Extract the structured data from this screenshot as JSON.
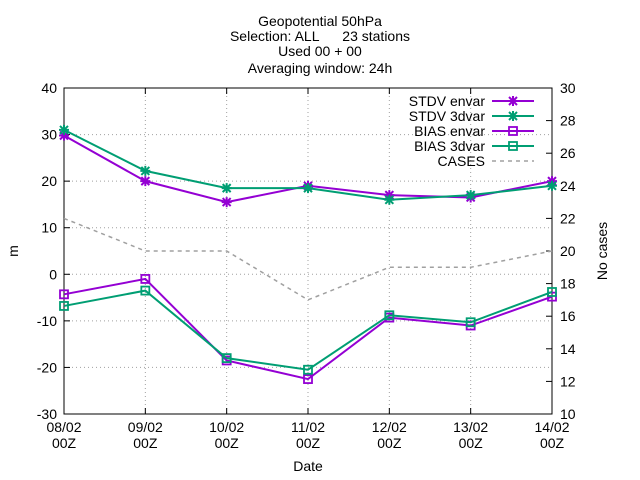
{
  "chart_data": {
    "type": "line",
    "title_lines": [
      "Geopotential 50hPa",
      "Selection: ALL      23 stations",
      "Used 00 + 00",
      "Averaging window: 24h"
    ],
    "xlabel": "Date",
    "ylabel": "m",
    "y2label": "No cases",
    "categories": [
      [
        "08/02",
        "00Z"
      ],
      [
        "09/02",
        "00Z"
      ],
      [
        "10/02",
        "00Z"
      ],
      [
        "11/02",
        "00Z"
      ],
      [
        "12/02",
        "00Z"
      ],
      [
        "13/02",
        "00Z"
      ],
      [
        "14/02",
        "00Z"
      ]
    ],
    "ylim": [
      -30,
      40
    ],
    "yticks": [
      -30,
      -20,
      -10,
      0,
      10,
      20,
      30,
      40
    ],
    "y2lim": [
      10,
      30
    ],
    "y2ticks": [
      10,
      12,
      14,
      16,
      18,
      20,
      22,
      24,
      26,
      28,
      30
    ],
    "grid": true,
    "legend_position": "top-right",
    "series": [
      {
        "name": "STDV envar",
        "axis": "y",
        "color": "#9400d3",
        "marker": "star",
        "dash": false,
        "values": [
          29.8,
          20.0,
          15.5,
          19.0,
          17.0,
          16.5,
          20.0
        ]
      },
      {
        "name": "STDV 3dvar",
        "axis": "y",
        "color": "#009e73",
        "marker": "star",
        "dash": false,
        "values": [
          31.0,
          22.2,
          18.5,
          18.5,
          16.0,
          17.0,
          19.0
        ]
      },
      {
        "name": "BIAS envar",
        "axis": "y",
        "color": "#9400d3",
        "marker": "square",
        "dash": false,
        "values": [
          -4.3,
          -1.0,
          -18.5,
          -22.5,
          -9.3,
          -11.0,
          -4.8
        ]
      },
      {
        "name": "BIAS 3dvar",
        "axis": "y",
        "color": "#009e73",
        "marker": "square",
        "dash": false,
        "values": [
          -6.8,
          -3.5,
          -18.0,
          -20.5,
          -8.8,
          -10.3,
          -3.8
        ]
      },
      {
        "name": "CASES",
        "axis": "y2",
        "color": "#a0a0a0",
        "marker": "none",
        "dash": true,
        "values": [
          22,
          20,
          20,
          17,
          19,
          19,
          20
        ]
      }
    ]
  }
}
